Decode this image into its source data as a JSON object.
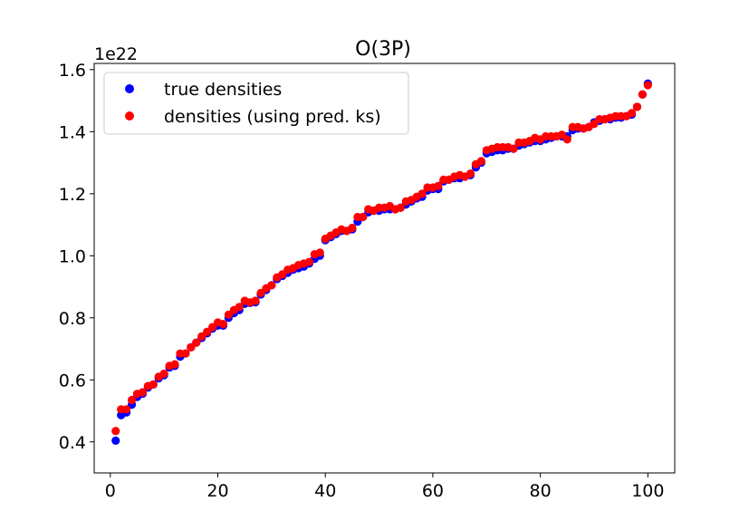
{
  "chart_data": {
    "type": "scatter",
    "title": "O(3P)",
    "xlabel": "",
    "ylabel": "",
    "y_multiplier_label": "1e22",
    "xlim": [
      -3,
      105
    ],
    "ylim": [
      0.3,
      1.62
    ],
    "x_ticks": [
      0,
      20,
      40,
      60,
      80,
      100
    ],
    "y_ticks": [
      0.4,
      0.6,
      0.8,
      1.0,
      1.2,
      1.4,
      1.6
    ],
    "y_tick_labels": [
      "0.4",
      "0.6",
      "0.8",
      "1.0",
      "1.2",
      "1.4",
      "1.6"
    ],
    "grid": false,
    "legend_position": "top-left",
    "series": [
      {
        "name": "true densities",
        "color": "#0000ff",
        "x": [
          1,
          2,
          3,
          4,
          5,
          6,
          7,
          8,
          9,
          10,
          11,
          12,
          13,
          14,
          15,
          16,
          17,
          18,
          19,
          20,
          21,
          22,
          23,
          24,
          25,
          26,
          27,
          28,
          29,
          30,
          31,
          32,
          33,
          34,
          35,
          36,
          37,
          38,
          39,
          40,
          41,
          42,
          43,
          44,
          45,
          46,
          47,
          48,
          49,
          50,
          51,
          52,
          53,
          54,
          55,
          56,
          57,
          58,
          59,
          60,
          61,
          62,
          63,
          64,
          65,
          66,
          67,
          68,
          69,
          70,
          71,
          72,
          73,
          74,
          75,
          76,
          77,
          78,
          79,
          80,
          81,
          82,
          83,
          84,
          85,
          86,
          87,
          88,
          89,
          90,
          91,
          92,
          93,
          94,
          95,
          96,
          97,
          98,
          99,
          100
        ],
        "y": [
          0.404,
          0.486,
          0.495,
          0.52,
          0.545,
          0.555,
          0.575,
          0.585,
          0.605,
          0.615,
          0.64,
          0.645,
          0.675,
          0.685,
          0.705,
          0.72,
          0.735,
          0.75,
          0.765,
          0.775,
          0.775,
          0.8,
          0.815,
          0.825,
          0.845,
          0.848,
          0.85,
          0.875,
          0.89,
          0.905,
          0.925,
          0.935,
          0.945,
          0.955,
          0.96,
          0.965,
          0.975,
          0.99,
          1.0,
          1.05,
          1.06,
          1.07,
          1.08,
          1.08,
          1.085,
          1.11,
          1.125,
          1.14,
          1.145,
          1.145,
          1.15,
          1.15,
          1.15,
          1.155,
          1.165,
          1.175,
          1.185,
          1.19,
          1.21,
          1.215,
          1.215,
          1.24,
          1.245,
          1.25,
          1.25,
          1.255,
          1.26,
          1.285,
          1.3,
          1.33,
          1.335,
          1.34,
          1.34,
          1.345,
          1.345,
          1.355,
          1.36,
          1.365,
          1.37,
          1.37,
          1.375,
          1.38,
          1.385,
          1.385,
          1.385,
          1.405,
          1.41,
          1.41,
          1.415,
          1.43,
          1.435,
          1.44,
          1.44,
          1.445,
          1.445,
          1.45,
          1.455,
          1.48,
          1.52,
          1.555
        ]
      },
      {
        "name": "densities (using pred. ks)",
        "color": "#ff0000",
        "x": [
          1,
          2,
          3,
          4,
          5,
          6,
          7,
          8,
          9,
          10,
          11,
          12,
          13,
          14,
          15,
          16,
          17,
          18,
          19,
          20,
          21,
          22,
          23,
          24,
          25,
          26,
          27,
          28,
          29,
          30,
          31,
          32,
          33,
          34,
          35,
          36,
          37,
          38,
          39,
          40,
          41,
          42,
          43,
          44,
          45,
          46,
          47,
          48,
          49,
          50,
          51,
          52,
          53,
          54,
          55,
          56,
          57,
          58,
          59,
          60,
          61,
          62,
          63,
          64,
          65,
          66,
          67,
          68,
          69,
          70,
          71,
          72,
          73,
          74,
          75,
          76,
          77,
          78,
          79,
          80,
          81,
          82,
          83,
          84,
          85,
          86,
          87,
          88,
          89,
          90,
          91,
          92,
          93,
          94,
          95,
          96,
          97,
          98,
          99,
          100
        ],
        "y": [
          0.435,
          0.505,
          0.505,
          0.535,
          0.555,
          0.56,
          0.58,
          0.585,
          0.61,
          0.62,
          0.645,
          0.65,
          0.685,
          0.685,
          0.705,
          0.72,
          0.74,
          0.755,
          0.77,
          0.785,
          0.78,
          0.81,
          0.825,
          0.835,
          0.855,
          0.85,
          0.855,
          0.88,
          0.895,
          0.905,
          0.93,
          0.94,
          0.955,
          0.96,
          0.97,
          0.975,
          0.98,
          1.005,
          1.01,
          1.055,
          1.065,
          1.075,
          1.085,
          1.08,
          1.09,
          1.125,
          1.125,
          1.15,
          1.145,
          1.155,
          1.155,
          1.16,
          1.15,
          1.155,
          1.175,
          1.18,
          1.19,
          1.2,
          1.22,
          1.22,
          1.225,
          1.245,
          1.245,
          1.255,
          1.26,
          1.255,
          1.265,
          1.295,
          1.305,
          1.34,
          1.345,
          1.35,
          1.35,
          1.35,
          1.345,
          1.365,
          1.365,
          1.37,
          1.38,
          1.375,
          1.385,
          1.385,
          1.385,
          1.39,
          1.375,
          1.415,
          1.415,
          1.41,
          1.415,
          1.425,
          1.44,
          1.44,
          1.445,
          1.45,
          1.45,
          1.45,
          1.46,
          1.48,
          1.52,
          1.55
        ]
      }
    ]
  }
}
